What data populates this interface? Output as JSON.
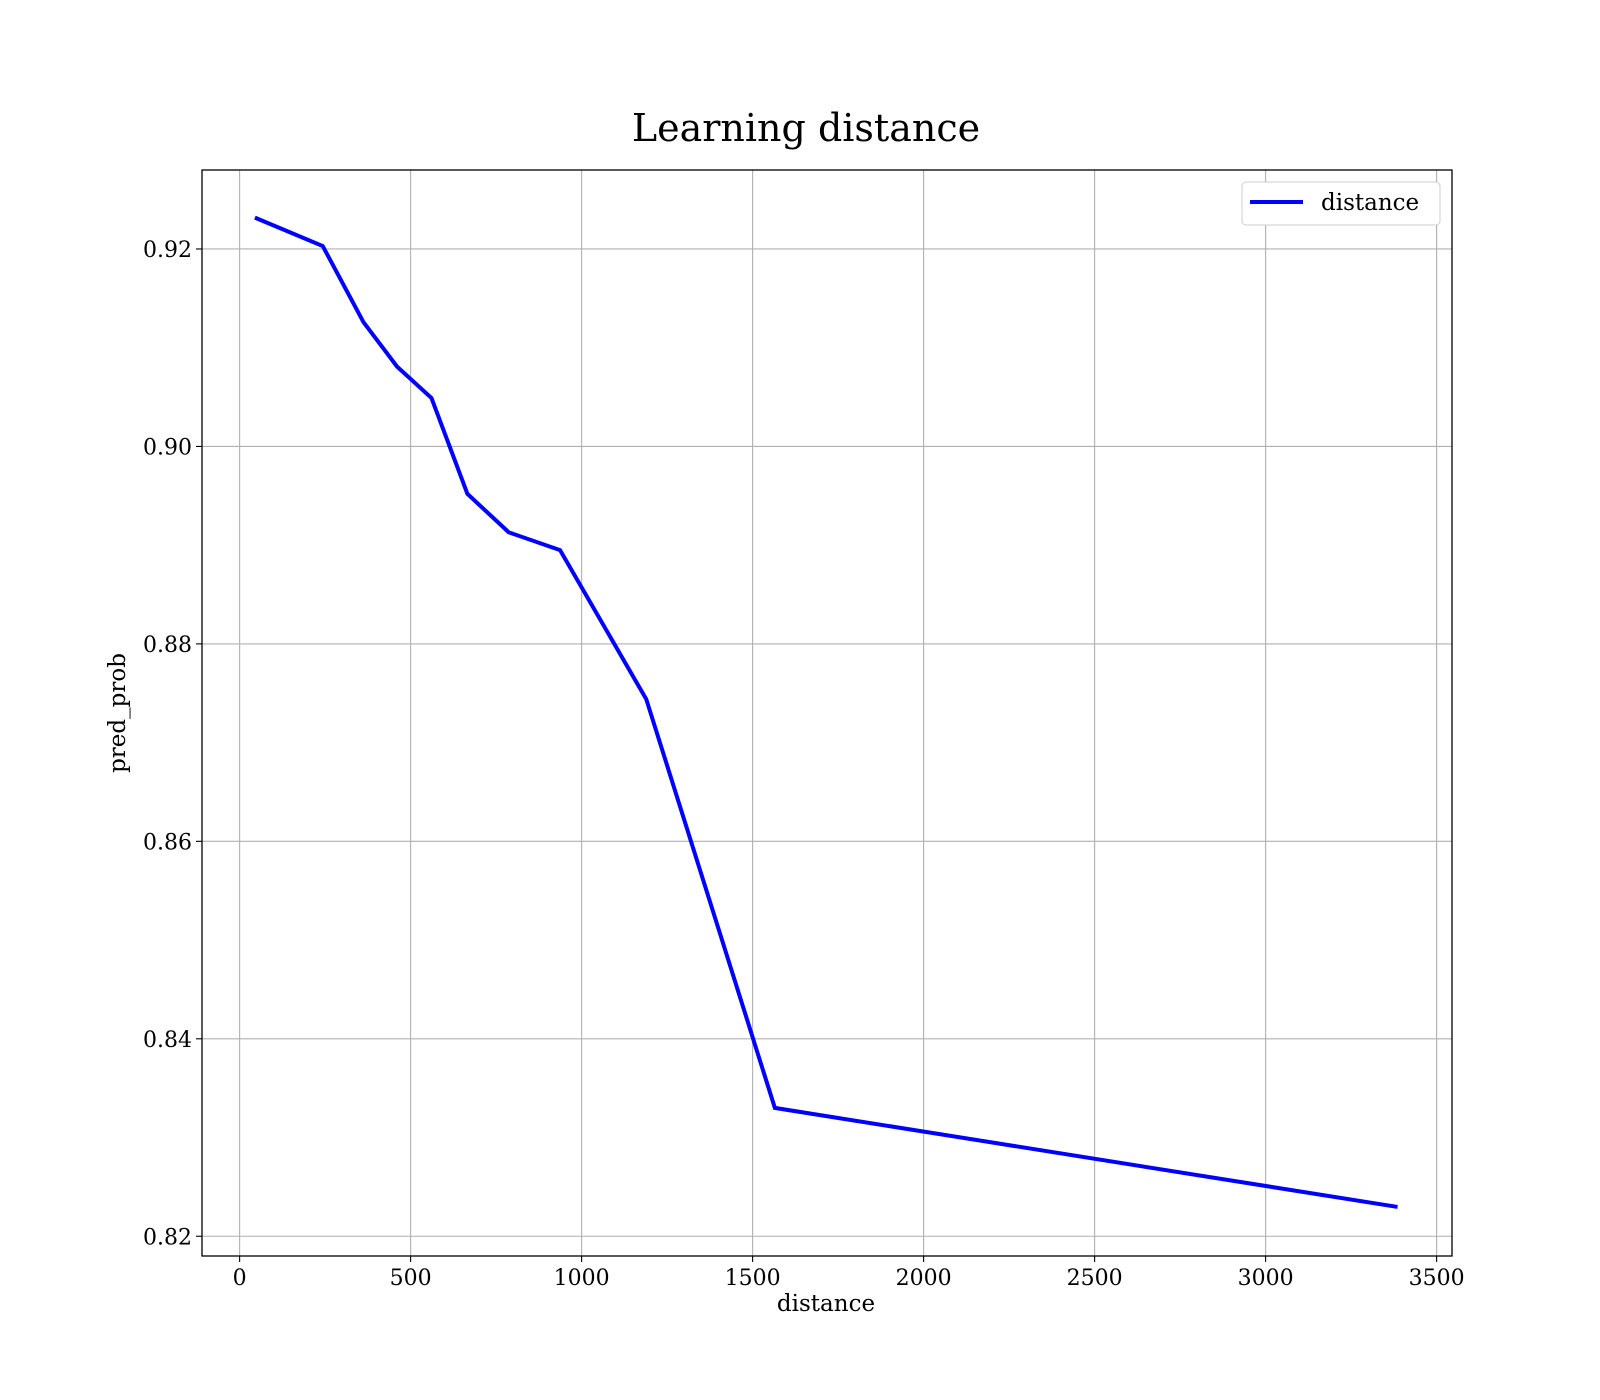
{
  "chart_data": {
    "type": "line",
    "title": "Learning distance",
    "xlabel": "distance",
    "ylabel": "pred_prob",
    "xlim": [
      -110,
      3545
    ],
    "ylim": [
      0.818,
      0.928
    ],
    "x_ticks": [
      0,
      500,
      1000,
      1500,
      2000,
      2500,
      3000,
      3500
    ],
    "x_tick_labels": [
      "0",
      "500",
      "1000",
      "1500",
      "2000",
      "2500",
      "3000",
      "3500"
    ],
    "y_ticks": [
      0.82,
      0.84,
      0.86,
      0.88,
      0.9,
      0.92
    ],
    "y_tick_labels": [
      "0.82",
      "0.84",
      "0.86",
      "0.88",
      "0.90",
      "0.92"
    ],
    "grid": true,
    "legend_position": "top-right",
    "series": [
      {
        "name": "distance",
        "color": "#0000ff",
        "x": [
          50,
          243,
          362,
          460,
          561,
          666,
          787,
          937,
          1189,
          1565,
          3380
        ],
        "y": [
          0.9231,
          0.9203,
          0.9126,
          0.9081,
          0.9049,
          0.8952,
          0.8913,
          0.8895,
          0.8744,
          0.833,
          0.823
        ]
      }
    ]
  }
}
